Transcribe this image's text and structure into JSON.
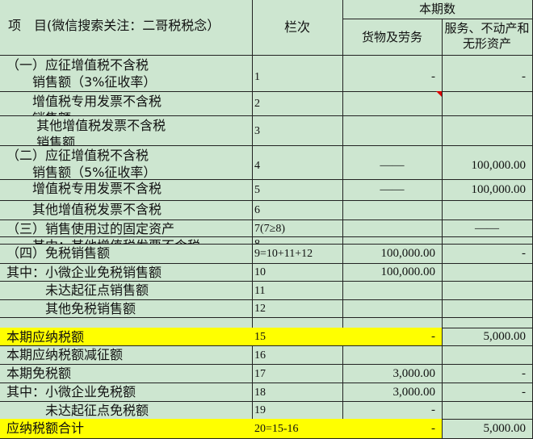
{
  "header": {
    "item": "项　目(微信搜索关注：二哥税税念）",
    "line_no": "栏次",
    "current_period": "本期数",
    "goods": "货物及劳务",
    "services": "服务、不动产和无形资产"
  },
  "colors": {
    "background": "#cde6d0",
    "highlight": "#ffff00",
    "comment_flag": "#dd0000"
  },
  "rows": [
    {
      "label": "（一）应征增值税不含税\n　　销售额（3%征收率）",
      "line": "1",
      "goods": "-",
      "services": "-"
    },
    {
      "label": "　　增值税专用发票不含税\n　　销售额",
      "line": "2",
      "goods": "",
      "services": ""
    },
    {
      "label": "　　 其他增值税发票不含税\n　　 销售额",
      "line": "3",
      "goods": "",
      "services": ""
    },
    {
      "label": "（二）应征增值税不含税\n　　销售额（5%征收率）",
      "line": "4",
      "goods": "——",
      "services": "100,000.00"
    },
    {
      "label": "　　增值税专用发票不含税",
      "line": "5",
      "goods": "——",
      "services": "100,000.00"
    },
    {
      "label": "　　其他增值税发票不含税",
      "line": "6",
      "goods": "",
      "services": ""
    },
    {
      "label": "（三）销售使用过的固定资产",
      "line": "7(7≥8)",
      "goods": "",
      "services": "——"
    },
    {
      "label": "　　其中：其他增值税发票不含税",
      "line": "8",
      "goods": "",
      "services": ""
    },
    {
      "label": "（四）免税销售额",
      "line": "9=10+11+12",
      "goods": "100,000.00",
      "services": "-"
    },
    {
      "label": "其中：小微企业免税销售额",
      "line": "10",
      "goods": "100,000.00",
      "services": ""
    },
    {
      "label": "　　　未达起征点销售额",
      "line": "11",
      "goods": "",
      "services": ""
    },
    {
      "label": "　　　其他免税销售额",
      "line": "12",
      "goods": "",
      "services": ""
    },
    {
      "label": "",
      "line": "",
      "goods": "",
      "services": ""
    },
    {
      "label": "本期应纳税额",
      "line": "15",
      "goods": "-",
      "services": "5,000.00",
      "highlight": true
    },
    {
      "label": "本期应纳税额减征额",
      "line": "16",
      "goods": "",
      "services": ""
    },
    {
      "label": "本期免税额",
      "line": "17",
      "goods": "3,000.00",
      "services": "-"
    },
    {
      "label": "其中：小微企业免税额",
      "line": "18",
      "goods": "3,000.00",
      "services": "-"
    },
    {
      "label": "　　　未达起征点免税额",
      "line": "19",
      "goods": "-",
      "services": ""
    },
    {
      "label": "应纳税额合计",
      "line": "20=15-16",
      "goods": "-",
      "services": "5,000.00",
      "highlight": true
    }
  ]
}
